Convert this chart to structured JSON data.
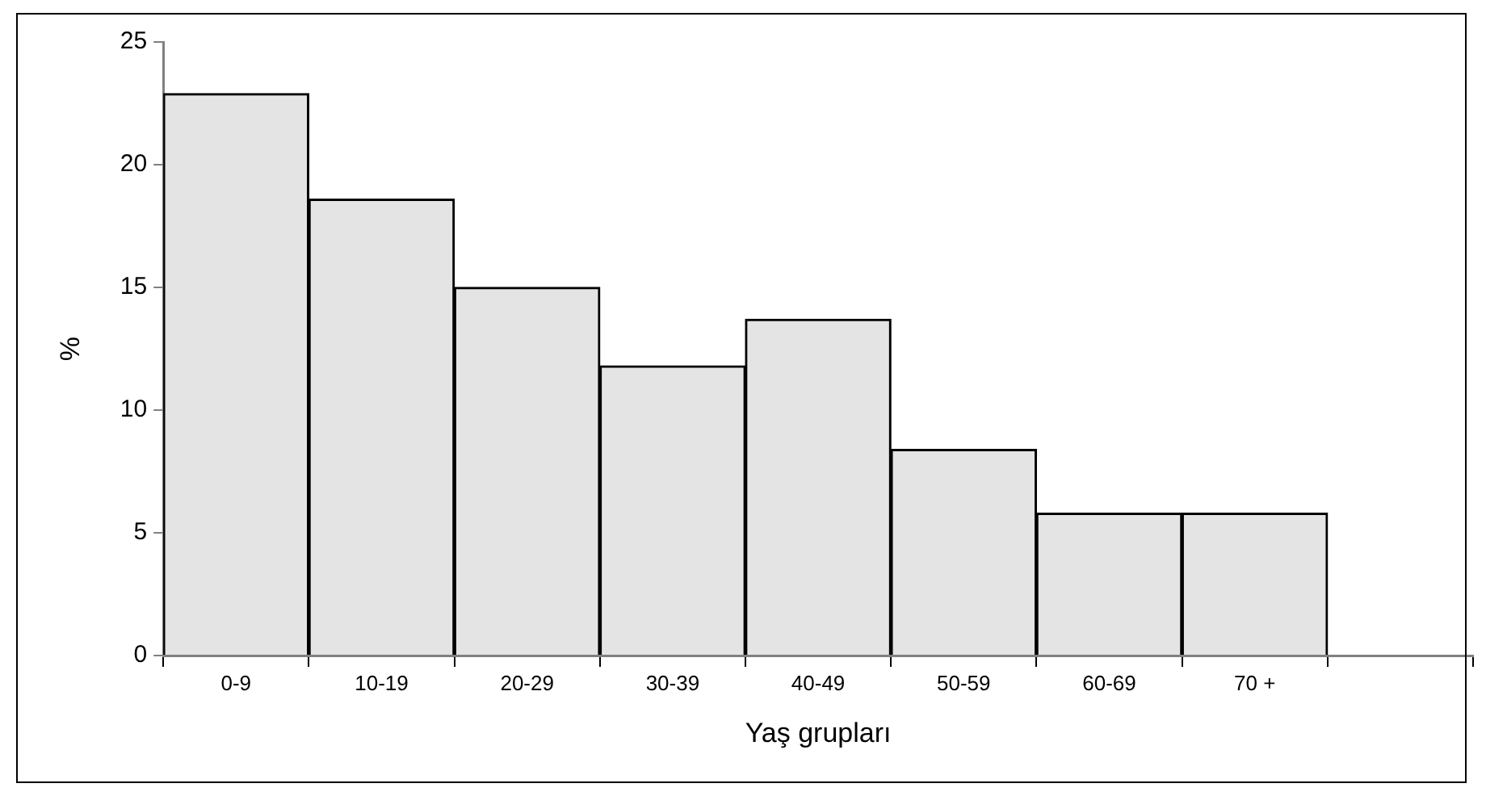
{
  "chart_data": {
    "type": "bar",
    "xlabel": "Yaş grupları",
    "ylabel": "%",
    "categories": [
      "0-9",
      "10-19",
      "20-29",
      "30-39",
      "40-49",
      "50-59",
      "60-69",
      "70 +",
      null
    ],
    "values": [
      22.9,
      18.6,
      15.0,
      11.8,
      13.7,
      8.4,
      5.8,
      5.8,
      null
    ],
    "color": "#e4e4e4",
    "ylim": [
      0,
      25
    ],
    "yticks": [
      0,
      5,
      10,
      15,
      20,
      25
    ],
    "grid": false,
    "legend": false
  }
}
